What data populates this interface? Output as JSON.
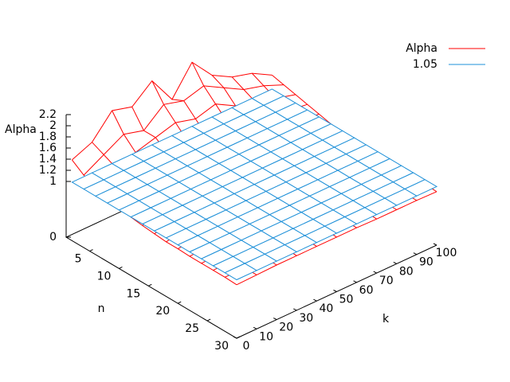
{
  "chart_data": {
    "type": "surface",
    "x_label": "n",
    "y_label": "k",
    "z_label": "Alpha",
    "n": [
      2,
      4,
      6,
      8,
      10,
      12,
      14,
      16,
      18,
      20,
      22,
      24,
      26,
      28,
      30
    ],
    "k": [
      0,
      10,
      20,
      30,
      40,
      50,
      60,
      70,
      80,
      90,
      100
    ],
    "nlim": [
      1,
      30
    ],
    "klim": [
      0,
      100
    ],
    "zlim": [
      0,
      2.2
    ],
    "nticks": [
      5,
      10,
      15,
      20,
      25,
      30
    ],
    "kticks": [
      0,
      10,
      20,
      30,
      40,
      50,
      60,
      70,
      80,
      90,
      100
    ],
    "zticks": [
      0,
      1,
      1.2,
      1.4,
      1.6,
      1.8,
      2,
      2.2
    ],
    "legend": "top-right",
    "series": [
      {
        "name": "Alpha",
        "color": "#ff0000",
        "values": [
          [
            1.45,
            1.6,
            2.0,
            1.9,
            2.2,
            1.7,
            2.2,
            1.8,
            1.6,
            1.5,
            1.3
          ],
          [
            1.3,
            1.5,
            1.7,
            1.6,
            1.9,
            1.8,
            1.9,
            1.7,
            1.5,
            1.4,
            1.25
          ],
          [
            1.2,
            1.4,
            1.5,
            1.6,
            1.7,
            1.6,
            1.7,
            1.5,
            1.4,
            1.3,
            1.2
          ],
          [
            1.15,
            1.3,
            1.4,
            1.45,
            1.5,
            1.4,
            1.5,
            1.35,
            1.3,
            1.2,
            1.15
          ],
          [
            1.1,
            1.2,
            1.3,
            1.3,
            1.35,
            1.3,
            1.3,
            1.25,
            1.2,
            1.15,
            1.1
          ],
          [
            1.05,
            1.15,
            1.2,
            1.2,
            1.25,
            1.2,
            1.2,
            1.15,
            1.12,
            1.1,
            1.05
          ],
          [
            1.02,
            1.1,
            1.12,
            1.15,
            1.15,
            1.12,
            1.12,
            1.1,
            1.08,
            1.05,
            1.03
          ],
          [
            1.0,
            1.05,
            1.08,
            1.06,
            1.1,
            1.06,
            1.05,
            1.04,
            1.03,
            1.02,
            1.0
          ],
          [
            0.98,
            1.02,
            1.04,
            1.05,
            1.06,
            1.05,
            1.04,
            1.03,
            1.02,
            1.0,
            0.98
          ],
          [
            0.98,
            1.0,
            1.02,
            1.03,
            1.04,
            1.03,
            1.02,
            1.01,
            1.0,
            0.99,
            0.98
          ],
          [
            0.97,
            0.99,
            1.01,
            1.02,
            1.02,
            1.01,
            1.01,
            1.0,
            0.99,
            0.98,
            0.97
          ],
          [
            0.97,
            0.98,
            1.0,
            1.01,
            1.01,
            1.0,
            1.0,
            0.99,
            0.98,
            0.98,
            0.97
          ],
          [
            0.97,
            0.98,
            0.99,
            1.0,
            1.0,
            1.0,
            0.99,
            0.99,
            0.98,
            0.97,
            0.97
          ],
          [
            0.97,
            0.97,
            0.98,
            0.99,
            0.99,
            0.99,
            0.98,
            0.98,
            0.97,
            0.97,
            0.97
          ],
          [
            0.96,
            0.97,
            0.98,
            0.98,
            0.98,
            0.98,
            0.98,
            0.97,
            0.97,
            0.97,
            0.96
          ]
        ]
      },
      {
        "name": "1.05",
        "color": "#1e90d8",
        "value": 1.05
      }
    ]
  }
}
